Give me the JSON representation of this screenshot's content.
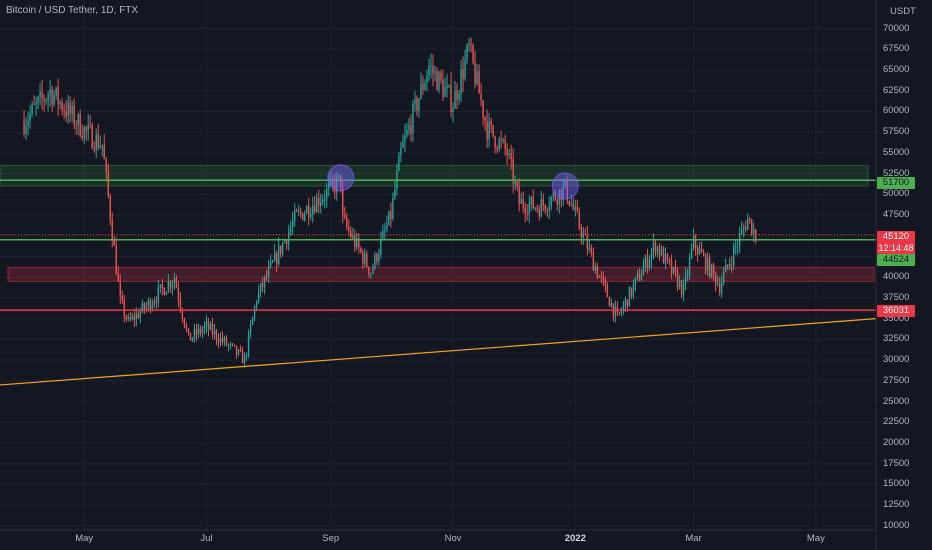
{
  "header": {
    "title": "Bitcoin / USD Tether, 1D, FTX",
    "currency": "USDT"
  },
  "price_labels": {
    "resistance": "51700",
    "last": "45120",
    "countdown": "12:14:48",
    "support_green": "44524",
    "support_red": "36031"
  },
  "colors": {
    "background": "#131722",
    "up": "#26a69a",
    "down": "#ef5350",
    "green_line": "#4caf50",
    "red_line": "#f23645",
    "trendline": "#f7a21b",
    "circle": "#7b61ff"
  },
  "chart_data": {
    "type": "candlestick",
    "x_axis_labels": [
      "May",
      "Jul",
      "Sep",
      "Nov",
      "2022",
      "Mar",
      "May"
    ],
    "y_ticks": [
      70000,
      67500,
      65000,
      62500,
      60000,
      57500,
      55000,
      52500,
      50000,
      47500,
      45000,
      42500,
      40000,
      37500,
      35000,
      32500,
      30000,
      27500,
      25000,
      22500,
      20000,
      17500,
      15000,
      12500,
      10000
    ],
    "ylim": [
      9500,
      72000
    ],
    "key_points": [
      {
        "date": "2021-04-01",
        "close": 58800
      },
      {
        "date": "2021-04-14",
        "close": 62500
      },
      {
        "date": "2021-05-01",
        "close": 57700
      },
      {
        "date": "2021-05-10",
        "close": 56000
      },
      {
        "date": "2021-05-19",
        "close": 37000
      },
      {
        "date": "2021-05-23",
        "close": 34500
      },
      {
        "date": "2021-06-01",
        "close": 36500
      },
      {
        "date": "2021-06-15",
        "close": 40000
      },
      {
        "date": "2021-06-22",
        "close": 32500
      },
      {
        "date": "2021-07-01",
        "close": 34000
      },
      {
        "date": "2021-07-20",
        "close": 30000
      },
      {
        "date": "2021-07-26",
        "close": 37500
      },
      {
        "date": "2021-08-14",
        "close": 47000
      },
      {
        "date": "2021-09-06",
        "close": 51700
      },
      {
        "date": "2021-09-07",
        "close": 46800
      },
      {
        "date": "2021-09-21",
        "close": 40700
      },
      {
        "date": "2021-10-01",
        "close": 47500
      },
      {
        "date": "2021-10-06",
        "close": 55000
      },
      {
        "date": "2021-10-20",
        "close": 65500
      },
      {
        "date": "2021-11-01",
        "close": 61000
      },
      {
        "date": "2021-11-09",
        "close": 67500
      },
      {
        "date": "2021-11-18",
        "close": 58000
      },
      {
        "date": "2021-11-28",
        "close": 55000
      },
      {
        "date": "2021-12-04",
        "close": 49000
      },
      {
        "date": "2021-12-14",
        "close": 48500
      },
      {
        "date": "2021-12-27",
        "close": 50700
      },
      {
        "date": "2022-01-10",
        "close": 41800
      },
      {
        "date": "2022-01-22",
        "close": 35000
      },
      {
        "date": "2022-02-10",
        "close": 44000
      },
      {
        "date": "2022-02-24",
        "close": 38300
      },
      {
        "date": "2022-03-01",
        "close": 44200
      },
      {
        "date": "2022-03-14",
        "close": 39000
      },
      {
        "date": "2022-03-28",
        "close": 47100
      },
      {
        "date": "2022-04-01",
        "close": 45120
      }
    ],
    "horizontal_levels": [
      {
        "price": 51700,
        "color": "green"
      },
      {
        "price": 44524,
        "color": "green"
      },
      {
        "price": 36031,
        "color": "red"
      }
    ],
    "zones": [
      {
        "from_price": 51000,
        "to_price": 53500,
        "color": "green"
      },
      {
        "from_price": 39500,
        "to_price": 41200,
        "color": "red"
      }
    ],
    "trendline": {
      "from": {
        "date": "2021-03-20",
        "price": 27000
      },
      "to": {
        "date": "2022-05-31",
        "price": 35000
      }
    },
    "circles": [
      {
        "date": "2021-09-06",
        "price": 52000
      },
      {
        "date": "2021-12-27",
        "price": 51000
      }
    ]
  }
}
